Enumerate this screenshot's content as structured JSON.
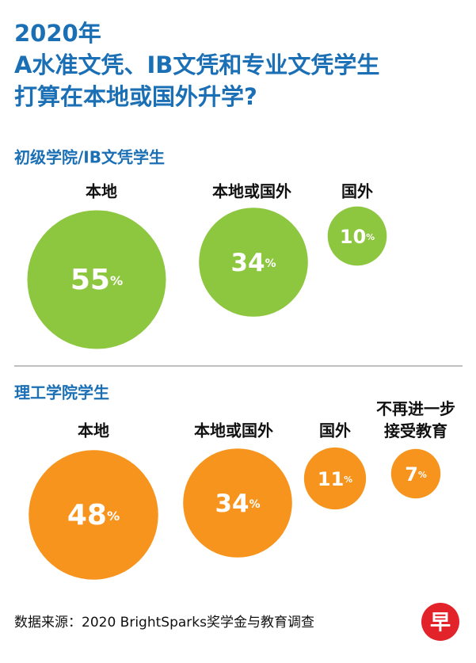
{
  "title": "2020年\nA水准文凭、IB文凭和专业文凭学生\n打算在本地或国外升学?",
  "source": "数据来源：2020 BrightSparks奖学金与教育调查",
  "logo": "早",
  "chart_data": [
    {
      "type": "bubble",
      "title": "初级学院/IB文凭学生",
      "categories": [
        "本地",
        "本地或国外",
        "国外"
      ],
      "values": [
        55,
        34,
        10
      ],
      "value_labels": [
        "55%",
        "34%",
        "10%"
      ],
      "color": "#8dc63f"
    },
    {
      "type": "bubble",
      "title": "理工学院学生",
      "categories": [
        "本地",
        "本地或国外",
        "国外",
        "不再进一步\n接受教育"
      ],
      "values": [
        48,
        34,
        11,
        7
      ],
      "value_labels": [
        "48%",
        "34%",
        "11%",
        "7%"
      ],
      "color": "#f7941d"
    }
  ]
}
